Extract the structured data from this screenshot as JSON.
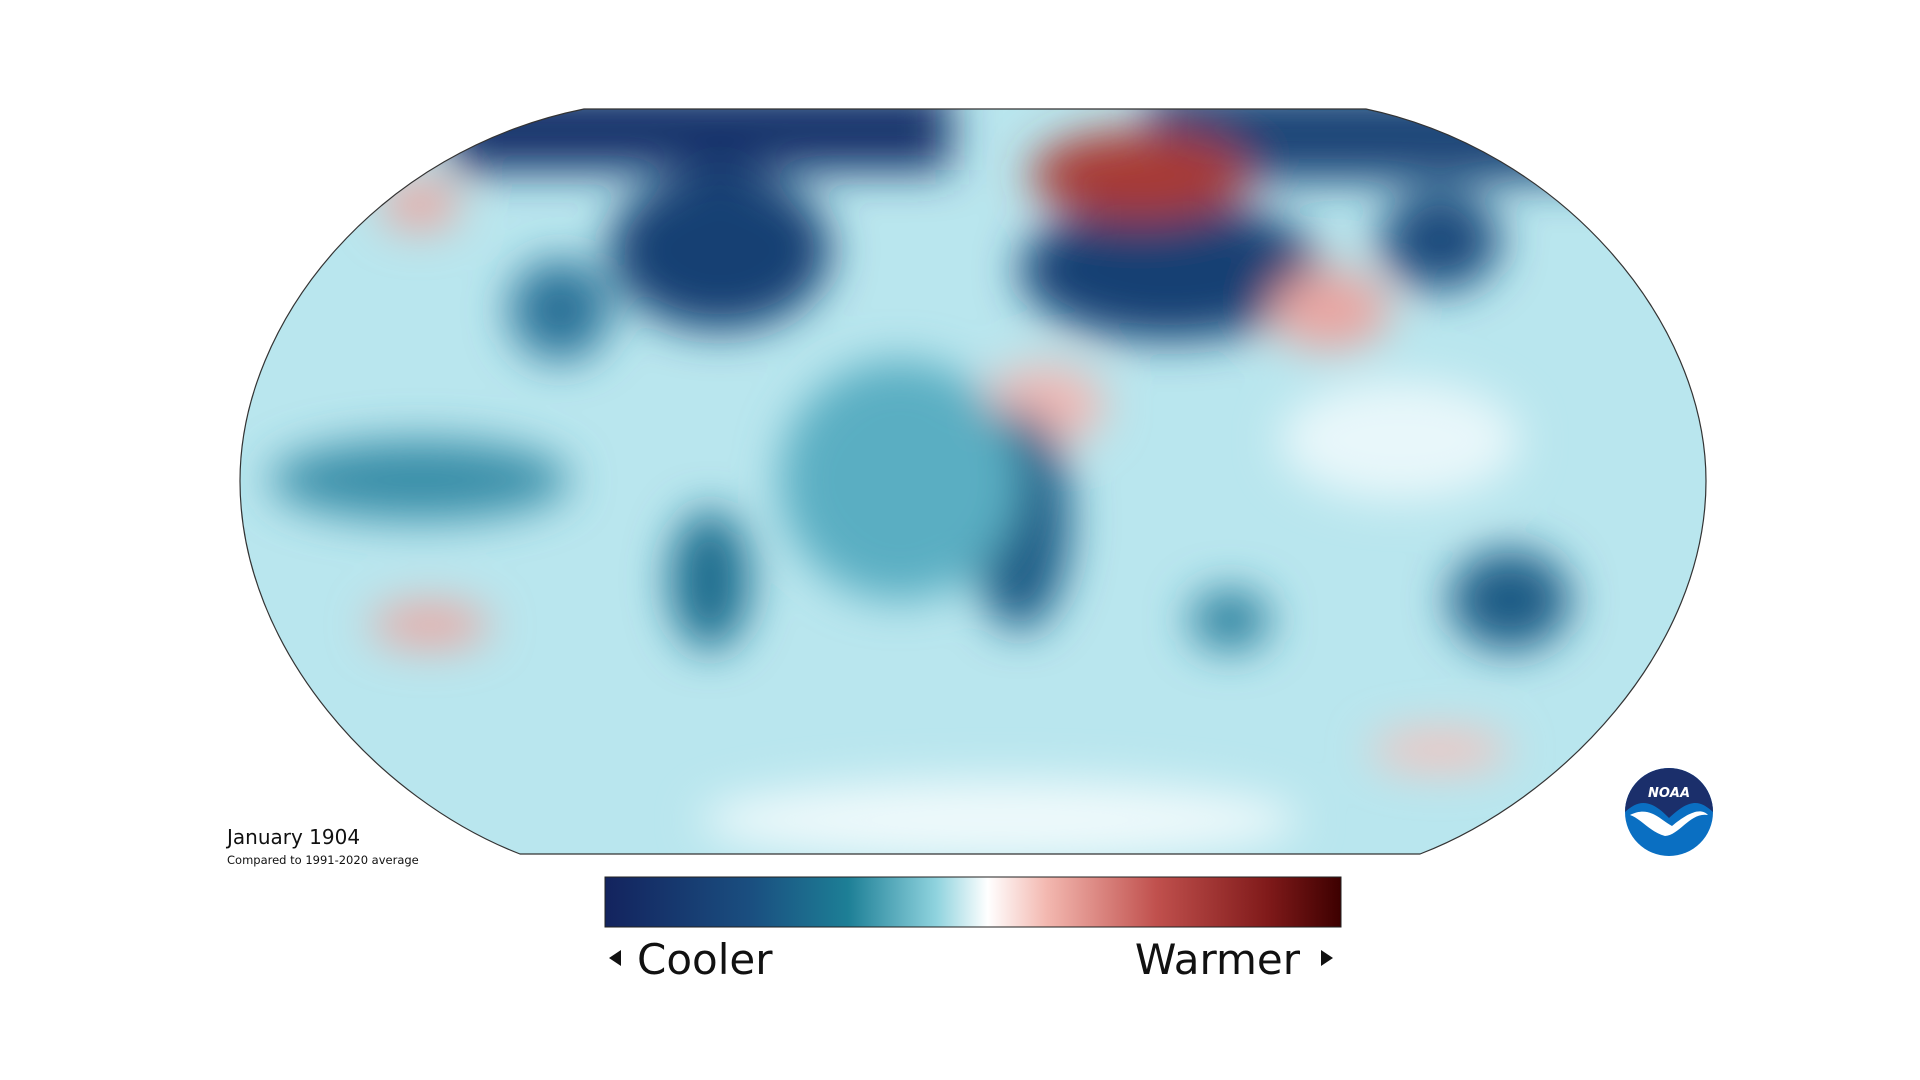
{
  "map": {
    "title": "January 1904",
    "subtitle": "Compared to 1991-2020 average"
  },
  "legend": {
    "low_label": "Cooler",
    "high_label": "Warmer"
  },
  "logo": {
    "text": "NOAA"
  }
}
